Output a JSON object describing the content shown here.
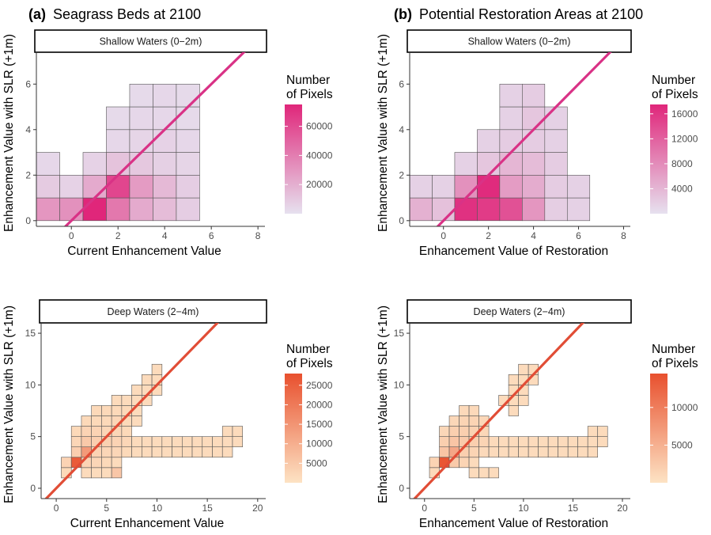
{
  "headings": {
    "a_tag": "(a)",
    "a_title": "Seagrass Beds at 2100",
    "b_tag": "(b)",
    "b_title": "Potential Restoration Areas at 2100"
  },
  "chart_data": [
    {
      "id": "a-shallow",
      "type": "heatmap",
      "strip": "Shallow Waters (0−2m)",
      "xlabel": "Current Enhancement Value",
      "ylabel": "Enhancement Value with SLR (+1m)",
      "xlim": [
        -1.5,
        8.3
      ],
      "ylim": [
        -0.25,
        7.4
      ],
      "xticks": [
        "0",
        "2",
        "4",
        "6",
        "8"
      ],
      "xtick_values": [
        0,
        2,
        4,
        6,
        8
      ],
      "yticks": [
        "0",
        "2",
        "4",
        "6"
      ],
      "ytick_values": [
        0,
        2,
        4,
        6
      ],
      "bin": 1,
      "grid": false,
      "legend": {
        "title": [
          "Number",
          "of Pixels"
        ],
        "position": "right",
        "min": 0,
        "max": 75000,
        "ticks": [
          "20000",
          "40000",
          "60000"
        ],
        "tick_values": [
          20000,
          40000,
          60000
        ]
      },
      "colors": {
        "low": "#e6e1ef",
        "high": "#e0267a",
        "line": "#d93286"
      },
      "line": {
        "slope": 1,
        "intercept": 0
      },
      "cells": [
        [
          -1,
          0,
          30000
        ],
        [
          0,
          0,
          32000
        ],
        [
          1,
          0,
          75000
        ],
        [
          2,
          0,
          42000
        ],
        [
          3,
          0,
          22000
        ],
        [
          4,
          0,
          15000
        ],
        [
          5,
          0,
          8000
        ],
        [
          -1,
          1,
          9000
        ],
        [
          0,
          1,
          6000
        ],
        [
          1,
          1,
          22000
        ],
        [
          2,
          1,
          62000
        ],
        [
          3,
          1,
          28000
        ],
        [
          4,
          1,
          16000
        ],
        [
          5,
          1,
          8000
        ],
        [
          -1,
          2,
          4000
        ],
        [
          1,
          2,
          6000
        ],
        [
          2,
          2,
          12000
        ],
        [
          3,
          2,
          10000
        ],
        [
          4,
          2,
          7000
        ],
        [
          5,
          2,
          5000
        ],
        [
          2,
          3,
          4000
        ],
        [
          3,
          3,
          5000
        ],
        [
          4,
          3,
          6000
        ],
        [
          5,
          3,
          4000
        ],
        [
          2,
          4,
          3000
        ],
        [
          3,
          4,
          4000
        ],
        [
          4,
          4,
          4000
        ],
        [
          5,
          4,
          3000
        ],
        [
          3,
          5,
          3000
        ],
        [
          4,
          5,
          4000
        ],
        [
          5,
          5,
          3000
        ]
      ]
    },
    {
      "id": "b-shallow",
      "type": "heatmap",
      "strip": "Shallow Waters (0−2m)",
      "xlabel": "Enhancement Value of Restoration",
      "ylabel": "Enhancement Value with SLR (+1m)",
      "xlim": [
        -1.5,
        8.3
      ],
      "ylim": [
        -0.25,
        7.4
      ],
      "xticks": [
        "0",
        "2",
        "4",
        "6",
        "8"
      ],
      "xtick_values": [
        0,
        2,
        4,
        6,
        8
      ],
      "yticks": [
        "0",
        "2",
        "4",
        "6"
      ],
      "ytick_values": [
        0,
        2,
        4,
        6
      ],
      "bin": 1,
      "grid": false,
      "legend": {
        "title": [
          "Number",
          "of Pixels"
        ],
        "position": "right",
        "min": 0,
        "max": 17500,
        "ticks": [
          "4000",
          "8000",
          "12000",
          "16000"
        ],
        "tick_values": [
          4000,
          8000,
          12000,
          16000
        ]
      },
      "colors": {
        "low": "#e6e1ef",
        "high": "#e0267a",
        "line": "#d93286"
      },
      "line": {
        "slope": 1,
        "intercept": 0
      },
      "cells": [
        [
          -1,
          0,
          4500
        ],
        [
          0,
          0,
          3000
        ],
        [
          1,
          0,
          16500
        ],
        [
          2,
          0,
          15500
        ],
        [
          3,
          0,
          13500
        ],
        [
          4,
          0,
          7000
        ],
        [
          5,
          0,
          1800
        ],
        [
          6,
          0,
          1500
        ],
        [
          -1,
          1,
          1500
        ],
        [
          0,
          1,
          1500
        ],
        [
          1,
          1,
          7500
        ],
        [
          2,
          1,
          17000
        ],
        [
          3,
          1,
          6500
        ],
        [
          4,
          1,
          5000
        ],
        [
          5,
          1,
          2000
        ],
        [
          6,
          1,
          1500
        ],
        [
          1,
          2,
          1500
        ],
        [
          2,
          2,
          2500
        ],
        [
          3,
          2,
          4000
        ],
        [
          4,
          2,
          3500
        ],
        [
          5,
          2,
          2000
        ],
        [
          2,
          3,
          1500
        ],
        [
          3,
          3,
          2000
        ],
        [
          4,
          3,
          2000
        ],
        [
          5,
          3,
          1500
        ],
        [
          3,
          4,
          1500
        ],
        [
          4,
          4,
          2500
        ],
        [
          5,
          4,
          1500
        ],
        [
          3,
          5,
          1500
        ],
        [
          4,
          5,
          2000
        ]
      ]
    },
    {
      "id": "a-deep",
      "type": "heatmap",
      "strip": "Deep Waters (2−4m)",
      "xlabel": "Current Enhancement Value",
      "ylabel": "Enhancement Value with SLR (+1m)",
      "xlim": [
        -1.5,
        20.8
      ],
      "ylim": [
        -1,
        16
      ],
      "xticks": [
        "0",
        "5",
        "10",
        "15",
        "20"
      ],
      "xtick_values": [
        0,
        5,
        10,
        15,
        20
      ],
      "yticks": [
        "0",
        "5",
        "10",
        "15"
      ],
      "ytick_values": [
        0,
        5,
        10,
        15
      ],
      "bin": 1,
      "grid": false,
      "legend": {
        "title": [
          "Number",
          "of Pixels"
        ],
        "position": "right",
        "min": 0,
        "max": 28000,
        "ticks": [
          "5000",
          "10000",
          "15000",
          "20000",
          "25000"
        ],
        "tick_values": [
          5000,
          10000,
          15000,
          20000,
          25000
        ]
      },
      "colors": {
        "low": "#fde3c4",
        "high": "#e8502e",
        "line": "#e14d36"
      },
      "line": {
        "slope": 1,
        "intercept": 0
      },
      "cells": [
        [
          1,
          1,
          2000
        ],
        [
          3,
          1,
          1500
        ],
        [
          4,
          1,
          1500
        ],
        [
          5,
          1,
          1500
        ],
        [
          6,
          1,
          5500
        ],
        [
          1,
          2,
          3000
        ],
        [
          2,
          2,
          26000
        ],
        [
          3,
          2,
          3000
        ],
        [
          4,
          2,
          2500
        ],
        [
          5,
          2,
          2000
        ],
        [
          6,
          2,
          1500
        ],
        [
          2,
          3,
          4000
        ],
        [
          3,
          3,
          14000
        ],
        [
          4,
          3,
          3000
        ],
        [
          5,
          3,
          2500
        ],
        [
          6,
          3,
          2500
        ],
        [
          7,
          3,
          2000
        ],
        [
          8,
          3,
          1500
        ],
        [
          9,
          3,
          1500
        ],
        [
          10,
          3,
          1500
        ],
        [
          11,
          3,
          1500
        ],
        [
          12,
          3,
          1500
        ],
        [
          13,
          3,
          1500
        ],
        [
          14,
          3,
          1500
        ],
        [
          15,
          3,
          1500
        ],
        [
          16,
          3,
          1500
        ],
        [
          17,
          3,
          1500
        ],
        [
          2,
          4,
          2500
        ],
        [
          3,
          4,
          5000
        ],
        [
          4,
          4,
          4000
        ],
        [
          5,
          4,
          3500
        ],
        [
          6,
          4,
          3000
        ],
        [
          7,
          4,
          2500
        ],
        [
          8,
          4,
          1500
        ],
        [
          9,
          4,
          1500
        ],
        [
          10,
          4,
          1500
        ],
        [
          11,
          4,
          1500
        ],
        [
          12,
          4,
          1500
        ],
        [
          13,
          4,
          1500
        ],
        [
          14,
          4,
          1500
        ],
        [
          15,
          4,
          1500
        ],
        [
          16,
          4,
          1500
        ],
        [
          17,
          4,
          1500
        ],
        [
          18,
          4,
          1500
        ],
        [
          2,
          5,
          2000
        ],
        [
          3,
          5,
          3000
        ],
        [
          4,
          5,
          3000
        ],
        [
          5,
          5,
          2500
        ],
        [
          6,
          5,
          2500
        ],
        [
          7,
          5,
          2000
        ],
        [
          17,
          5,
          1500
        ],
        [
          18,
          5,
          1500
        ],
        [
          3,
          6,
          2000
        ],
        [
          4,
          6,
          2000
        ],
        [
          5,
          6,
          2000
        ],
        [
          6,
          6,
          2500
        ],
        [
          7,
          6,
          2000
        ],
        [
          8,
          6,
          1500
        ],
        [
          4,
          7,
          2000
        ],
        [
          5,
          7,
          2000
        ],
        [
          6,
          7,
          2000
        ],
        [
          7,
          7,
          2000
        ],
        [
          8,
          7,
          1500
        ],
        [
          6,
          8,
          1500
        ],
        [
          7,
          8,
          1500
        ],
        [
          8,
          8,
          1500
        ],
        [
          9,
          8,
          1500
        ],
        [
          8,
          9,
          1500
        ],
        [
          9,
          9,
          1500
        ],
        [
          10,
          9,
          1500
        ],
        [
          9,
          10,
          1500
        ],
        [
          10,
          10,
          1500
        ],
        [
          10,
          11,
          1500
        ]
      ]
    },
    {
      "id": "b-deep",
      "type": "heatmap",
      "strip": "Deep Waters (2−4m)",
      "xlabel": "Enhancement Value of Restoration",
      "ylabel": "Enhancement Value with SLR (+1m)",
      "xlim": [
        -1.5,
        20.8
      ],
      "ylim": [
        -1,
        16
      ],
      "xticks": [
        "0",
        "5",
        "10",
        "15",
        "20"
      ],
      "xtick_values": [
        0,
        5,
        10,
        15,
        20
      ],
      "yticks": [
        "0",
        "5",
        "10",
        "15"
      ],
      "ytick_values": [
        0,
        5,
        10,
        15
      ],
      "bin": 1,
      "grid": false,
      "legend": {
        "title": [
          "Number",
          "of Pixels"
        ],
        "position": "right",
        "min": 0,
        "max": 14500,
        "ticks": [
          "5000",
          "10000"
        ],
        "tick_values": [
          5000,
          10000
        ]
      },
      "colors": {
        "low": "#fde3c4",
        "high": "#e8502e",
        "line": "#e14d36"
      },
      "line": {
        "slope": 1,
        "intercept": 0
      },
      "cells": [
        [
          1,
          1,
          1000
        ],
        [
          5,
          1,
          800
        ],
        [
          6,
          1,
          800
        ],
        [
          7,
          1,
          800
        ],
        [
          1,
          2,
          1500
        ],
        [
          2,
          2,
          14000
        ],
        [
          3,
          2,
          2500
        ],
        [
          4,
          2,
          1500
        ],
        [
          5,
          2,
          800
        ],
        [
          2,
          3,
          3000
        ],
        [
          3,
          3,
          6000
        ],
        [
          4,
          3,
          2000
        ],
        [
          5,
          3,
          1500
        ],
        [
          6,
          3,
          1000
        ],
        [
          7,
          3,
          900
        ],
        [
          8,
          3,
          800
        ],
        [
          9,
          3,
          800
        ],
        [
          10,
          3,
          800
        ],
        [
          11,
          3,
          800
        ],
        [
          12,
          3,
          800
        ],
        [
          13,
          3,
          800
        ],
        [
          14,
          3,
          800
        ],
        [
          15,
          3,
          800
        ],
        [
          16,
          3,
          800
        ],
        [
          17,
          3,
          800
        ],
        [
          2,
          4,
          2000
        ],
        [
          3,
          4,
          3000
        ],
        [
          4,
          4,
          2500
        ],
        [
          5,
          4,
          2000
        ],
        [
          6,
          4,
          1500
        ],
        [
          7,
          4,
          900
        ],
        [
          8,
          4,
          800
        ],
        [
          9,
          4,
          800
        ],
        [
          10,
          4,
          800
        ],
        [
          11,
          4,
          800
        ],
        [
          12,
          4,
          800
        ],
        [
          13,
          4,
          800
        ],
        [
          14,
          4,
          800
        ],
        [
          15,
          4,
          800
        ],
        [
          16,
          4,
          800
        ],
        [
          17,
          4,
          800
        ],
        [
          18,
          4,
          800
        ],
        [
          2,
          5,
          1200
        ],
        [
          3,
          5,
          2000
        ],
        [
          4,
          5,
          2000
        ],
        [
          5,
          5,
          1800
        ],
        [
          6,
          5,
          1200
        ],
        [
          17,
          5,
          800
        ],
        [
          18,
          5,
          800
        ],
        [
          3,
          6,
          1200
        ],
        [
          4,
          6,
          1500
        ],
        [
          5,
          6,
          1500
        ],
        [
          6,
          6,
          1200
        ],
        [
          4,
          7,
          1000
        ],
        [
          5,
          7,
          1000
        ],
        [
          9,
          7,
          800
        ],
        [
          8,
          8,
          800
        ],
        [
          9,
          8,
          800
        ],
        [
          10,
          8,
          800
        ],
        [
          9,
          9,
          800
        ],
        [
          10,
          9,
          800
        ],
        [
          9,
          10,
          800
        ],
        [
          10,
          10,
          800
        ],
        [
          11,
          10,
          800
        ],
        [
          10,
          11,
          800
        ],
        [
          11,
          11,
          800
        ]
      ]
    }
  ]
}
